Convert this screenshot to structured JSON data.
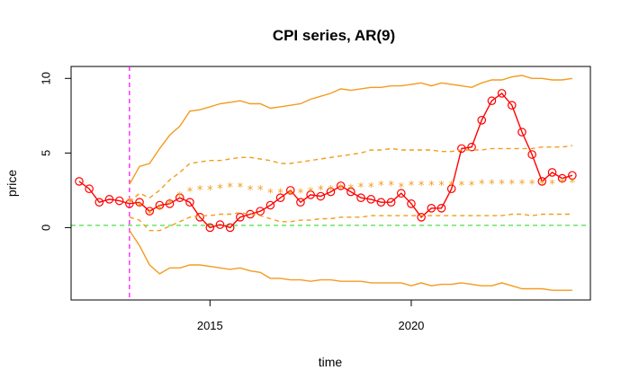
{
  "chart_data": {
    "type": "line",
    "title": "CPI series, AR(9)",
    "xlabel": "time",
    "ylabel": "price",
    "xlim": [
      2011.55,
      2024.45
    ],
    "ylim": [
      -4.85,
      10.8
    ],
    "x_ticks": [
      2015,
      2020
    ],
    "x_tick_labels": [
      "2015",
      "2020"
    ],
    "y_ticks": [
      0,
      5,
      10
    ],
    "y_tick_labels": [
      "0",
      "5",
      "10"
    ],
    "grid": false,
    "reference_lines": [
      {
        "orientation": "vertical",
        "value": 2013.0,
        "color": "#ff00ff",
        "style": "dashed"
      },
      {
        "orientation": "horizontal",
        "value": 0.15,
        "color": "#33dd33",
        "style": "dashed"
      }
    ],
    "series": [
      {
        "style": "line-circles",
        "color": "#ff0000",
        "x": [
          2011.75,
          2012.0,
          2012.25,
          2012.5,
          2012.75,
          2013.0,
          2013.25,
          2013.5,
          2013.75,
          2014.0,
          2014.25,
          2014.5,
          2014.75,
          2015.0,
          2015.25,
          2015.5,
          2015.75,
          2016.0,
          2016.25,
          2016.5,
          2016.75,
          2017.0,
          2017.25,
          2017.5,
          2017.75,
          2018.0,
          2018.25,
          2018.5,
          2018.75,
          2019.0,
          2019.25,
          2019.5,
          2019.75,
          2020.0,
          2020.25,
          2020.5,
          2020.75,
          2021.0,
          2021.25,
          2021.5,
          2021.75,
          2022.0,
          2022.25,
          2022.5,
          2022.75,
          2023.0,
          2023.25,
          2023.5,
          2023.75,
          2024.0
        ],
        "values": [
          3.1,
          2.6,
          1.7,
          1.9,
          1.8,
          1.6,
          1.7,
          1.1,
          1.5,
          1.6,
          2.0,
          1.7,
          0.7,
          0.0,
          0.2,
          0.0,
          0.7,
          0.9,
          1.1,
          1.5,
          2.0,
          2.5,
          1.7,
          2.2,
          2.1,
          2.4,
          2.8,
          2.4,
          2.0,
          1.9,
          1.7,
          1.7,
          2.3,
          1.6,
          0.7,
          1.3,
          1.3,
          2.6,
          5.3,
          5.4,
          7.2,
          8.5,
          9.0,
          8.2,
          6.4,
          4.9,
          3.1,
          3.7,
          3.3,
          3.5
        ]
      },
      {
        "style": "stars",
        "color": "#f39c1f",
        "x": [
          2013.0,
          2013.25,
          2013.5,
          2013.75,
          2014.0,
          2014.25,
          2014.5,
          2014.75,
          2015.0,
          2015.25,
          2015.5,
          2015.75,
          2016.0,
          2016.25,
          2016.5,
          2016.75,
          2017.0,
          2017.25,
          2017.5,
          2017.75,
          2018.0,
          2018.25,
          2018.5,
          2018.75,
          2019.0,
          2019.25,
          2019.5,
          2019.75,
          2020.0,
          2020.25,
          2020.5,
          2020.75,
          2021.0,
          2021.25,
          2021.5,
          2021.75,
          2022.0,
          2022.25,
          2022.5,
          2022.75,
          2023.0,
          2023.25,
          2023.5,
          2023.75,
          2024.0
        ],
        "values": [
          1.8,
          1.5,
          1.0,
          1.3,
          1.7,
          2.2,
          2.5,
          2.6,
          2.6,
          2.7,
          2.8,
          2.8,
          2.6,
          2.6,
          2.4,
          2.4,
          2.3,
          2.4,
          2.5,
          2.6,
          2.6,
          2.7,
          2.7,
          2.8,
          2.8,
          2.9,
          2.9,
          2.8,
          2.9,
          2.9,
          2.9,
          2.9,
          2.9,
          2.9,
          2.9,
          3.0,
          3.0,
          3.0,
          3.0,
          3.0,
          3.0,
          3.0,
          3.0,
          3.1,
          3.1
        ]
      },
      {
        "style": "dashed",
        "color": "#f39c1f",
        "x": [
          2013.0,
          2013.25,
          2013.5,
          2013.75,
          2014.0,
          2014.25,
          2014.5,
          2014.75,
          2015.0,
          2015.25,
          2015.5,
          2015.75,
          2016.0,
          2016.25,
          2016.5,
          2016.75,
          2017.0,
          2017.25,
          2017.5,
          2017.75,
          2018.0,
          2018.25,
          2018.5,
          2018.75,
          2019.0,
          2019.25,
          2019.5,
          2019.75,
          2020.0,
          2020.25,
          2020.5,
          2020.75,
          2021.0,
          2021.25,
          2021.5,
          2021.75,
          2022.0,
          2022.25,
          2022.5,
          2022.75,
          2023.0,
          2023.25,
          2023.5,
          2023.75,
          2024.0
        ],
        "values": [
          1.7,
          2.3,
          2.0,
          2.5,
          3.2,
          3.7,
          4.3,
          4.4,
          4.5,
          4.5,
          4.6,
          4.7,
          4.7,
          4.6,
          4.5,
          4.3,
          4.3,
          4.4,
          4.5,
          4.6,
          4.7,
          4.8,
          4.9,
          5.0,
          5.2,
          5.2,
          5.3,
          5.2,
          5.2,
          5.2,
          5.2,
          5.1,
          5.1,
          5.2,
          5.2,
          5.2,
          5.3,
          5.3,
          5.3,
          5.3,
          5.3,
          5.4,
          5.4,
          5.4,
          5.5
        ]
      },
      {
        "style": "dashed",
        "color": "#f39c1f",
        "x": [
          2013.0,
          2013.25,
          2013.5,
          2013.75,
          2014.0,
          2014.25,
          2014.5,
          2014.75,
          2015.0,
          2015.25,
          2015.5,
          2015.75,
          2016.0,
          2016.25,
          2016.5,
          2016.75,
          2017.0,
          2017.25,
          2017.5,
          2017.75,
          2018.0,
          2018.25,
          2018.5,
          2018.75,
          2019.0,
          2019.25,
          2019.5,
          2019.75,
          2020.0,
          2020.25,
          2020.5,
          2020.75,
          2021.0,
          2021.25,
          2021.5,
          2021.75,
          2022.0,
          2022.25,
          2022.5,
          2022.75,
          2023.0,
          2023.25,
          2023.5,
          2023.75,
          2024.0
        ],
        "values": [
          0.7,
          0.5,
          -0.2,
          -0.2,
          0.1,
          0.4,
          0.7,
          0.8,
          0.8,
          0.9,
          0.9,
          1.0,
          0.9,
          0.8,
          0.6,
          0.4,
          0.4,
          0.5,
          0.5,
          0.6,
          0.6,
          0.7,
          0.7,
          0.7,
          0.8,
          0.8,
          0.8,
          0.8,
          0.8,
          0.8,
          0.8,
          0.8,
          0.8,
          0.8,
          0.8,
          0.8,
          0.8,
          0.8,
          0.9,
          0.9,
          0.8,
          0.9,
          0.9,
          0.9,
          0.9
        ]
      },
      {
        "style": "solid",
        "color": "#f39c1f",
        "x": [
          2013.0,
          2013.25,
          2013.5,
          2013.75,
          2014.0,
          2014.25,
          2014.5,
          2014.75,
          2015.0,
          2015.25,
          2015.5,
          2015.75,
          2016.0,
          2016.25,
          2016.5,
          2016.75,
          2017.0,
          2017.25,
          2017.5,
          2017.75,
          2018.0,
          2018.25,
          2018.5,
          2018.75,
          2019.0,
          2019.25,
          2019.5,
          2019.75,
          2020.0,
          2020.25,
          2020.5,
          2020.75,
          2021.0,
          2021.25,
          2021.5,
          2021.75,
          2022.0,
          2022.25,
          2022.5,
          2022.75,
          2023.0,
          2023.25,
          2023.5,
          2023.75,
          2024.0
        ],
        "values": [
          2.9,
          4.1,
          4.3,
          5.3,
          6.2,
          6.8,
          7.8,
          7.9,
          8.1,
          8.3,
          8.4,
          8.5,
          8.3,
          8.3,
          8.0,
          8.1,
          8.2,
          8.3,
          8.6,
          8.8,
          9.0,
          9.3,
          9.2,
          9.3,
          9.4,
          9.4,
          9.5,
          9.5,
          9.6,
          9.7,
          9.5,
          9.7,
          9.6,
          9.5,
          9.4,
          9.7,
          9.9,
          9.9,
          10.1,
          10.2,
          10.0,
          10.0,
          9.9,
          9.9,
          10.0
        ]
      },
      {
        "style": "solid",
        "color": "#f39c1f",
        "x": [
          2013.0,
          2013.25,
          2013.5,
          2013.75,
          2014.0,
          2014.25,
          2014.5,
          2014.75,
          2015.0,
          2015.25,
          2015.5,
          2015.75,
          2016.0,
          2016.25,
          2016.5,
          2016.75,
          2017.0,
          2017.25,
          2017.5,
          2017.75,
          2018.0,
          2018.25,
          2018.5,
          2018.75,
          2019.0,
          2019.25,
          2019.5,
          2019.75,
          2020.0,
          2020.25,
          2020.5,
          2020.75,
          2021.0,
          2021.25,
          2021.5,
          2021.75,
          2022.0,
          2022.25,
          2022.5,
          2022.75,
          2023.0,
          2023.25,
          2023.5,
          2023.75,
          2024.0
        ],
        "values": [
          -0.2,
          -1.2,
          -2.5,
          -3.1,
          -2.7,
          -2.7,
          -2.5,
          -2.5,
          -2.6,
          -2.7,
          -2.8,
          -2.7,
          -2.9,
          -3.0,
          -3.4,
          -3.4,
          -3.5,
          -3.5,
          -3.6,
          -3.5,
          -3.5,
          -3.6,
          -3.6,
          -3.6,
          -3.7,
          -3.7,
          -3.7,
          -3.7,
          -3.9,
          -3.7,
          -3.9,
          -3.8,
          -3.8,
          -3.7,
          -3.8,
          -3.9,
          -3.9,
          -3.7,
          -3.9,
          -4.1,
          -4.1,
          -4.1,
          -4.2,
          -4.2,
          -4.2
        ]
      }
    ]
  }
}
